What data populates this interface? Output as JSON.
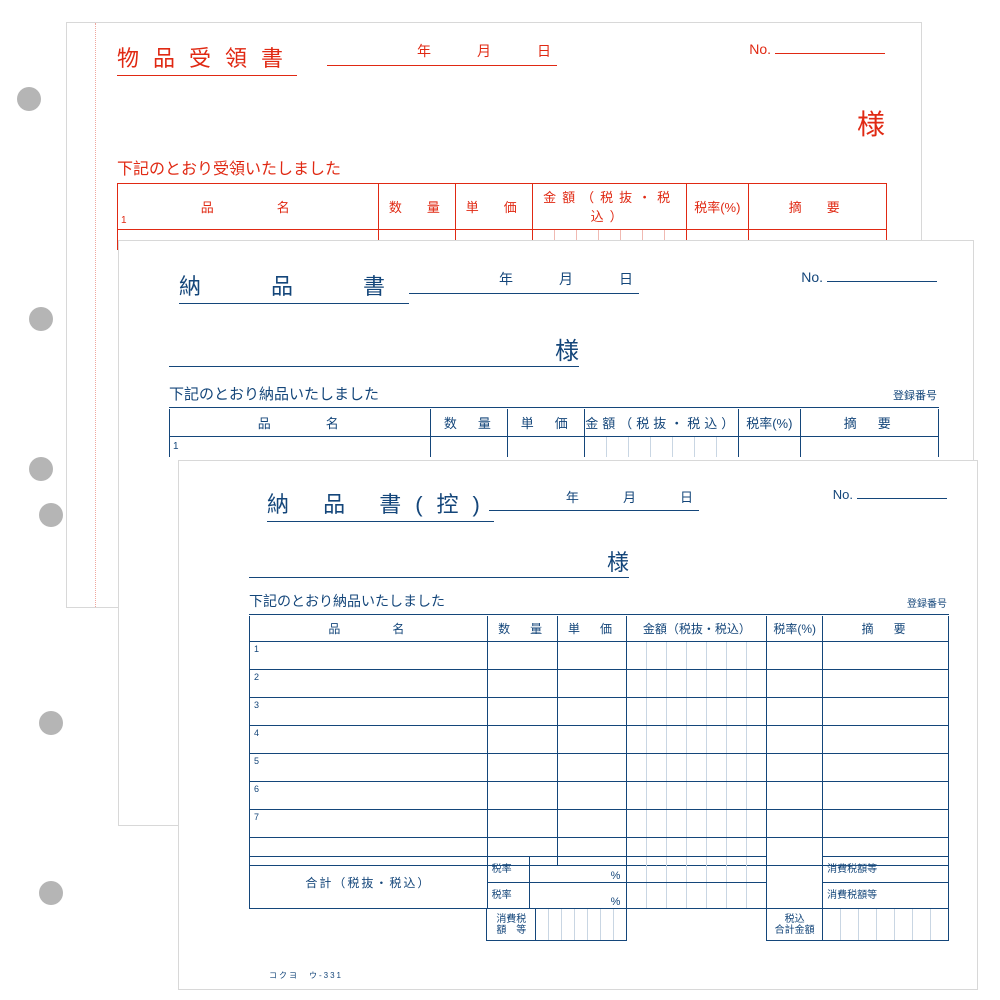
{
  "product_code": "コクヨ　ウ-331",
  "columns": {
    "name": "品　　　名",
    "qty": "数　量",
    "unit_price": "単　価",
    "amount": "金額（税抜・税込）",
    "tax_rate": "税率(%)",
    "remarks": "摘　要"
  },
  "date_labels": {
    "year": "年",
    "month": "月",
    "day": "日"
  },
  "no_label": "No.",
  "sama": "様",
  "reg_no": "登録番号",
  "slip1": {
    "title": "物品受領書",
    "statement": "下記のとおり受領いたしました",
    "color": "#e02913",
    "row_count": 1
  },
  "slip2": {
    "title": "納　品　書",
    "statement": "下記のとおり納品いたしました",
    "color": "#14467a",
    "row_count": 1
  },
  "slip3": {
    "title": "納 品 書(控)",
    "statement": "下記のとおり納品いたしました",
    "color": "#14467a",
    "row_count": 7,
    "totals_label": "合計（税抜・税込）",
    "tax_rate_label": "税率",
    "percent": "%",
    "consumption_tax": "消費税額等",
    "consumption_tax_multiline": "消費税\n額　等",
    "tax_included_total": "税込\n合計金額"
  },
  "col_widths": {
    "name_pct": 34,
    "qty_pct": 10,
    "price_pct": 10,
    "amount_pct": 20,
    "rate_pct": 8,
    "remarks_pct": 18
  }
}
